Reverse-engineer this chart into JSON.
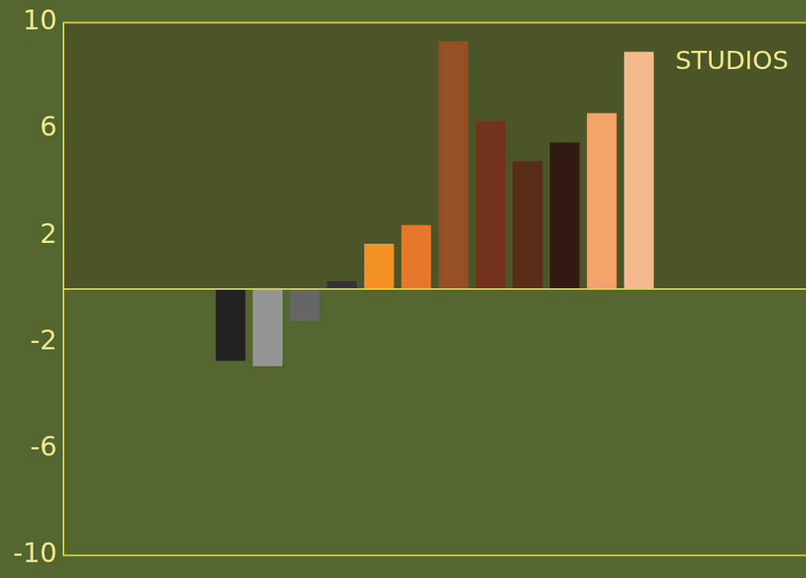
{
  "chart_data": {
    "type": "bar",
    "categories": [
      null,
      null,
      null,
      null,
      null,
      null,
      null,
      null,
      null,
      null,
      null,
      null,
      null,
      null,
      null,
      null,
      null,
      null,
      null,
      null
    ],
    "values": [
      null,
      null,
      null,
      null,
      -2.7,
      -2.9,
      -1.2,
      0.3,
      1.7,
      2.4,
      9.3,
      6.3,
      4.8,
      5.5,
      6.6,
      8.9,
      null,
      null,
      null,
      null
    ],
    "colors": [
      "#222222",
      "#222222",
      "#222222",
      "#222222",
      "#222222",
      "#959595",
      "#666666",
      "#333333",
      "#f39221",
      "#e57728",
      "#964f23",
      "#73321a",
      "#582e1a",
      "#311a12",
      "#f2a368",
      "#f4ba8c",
      "#f4ba8c",
      "#f4ba8c",
      "#f4ba8c",
      "#f4ba8c"
    ],
    "ylim": [
      -10,
      10
    ],
    "yticks": [
      -10,
      -6,
      -2,
      2,
      6,
      10
    ],
    "bands": [
      {
        "axis": "y",
        "from": 0,
        "to": 10,
        "color": "#4b5528"
      }
    ],
    "ref_lines": [
      {
        "axis": "y",
        "value": 0,
        "color": "#d8d44a"
      }
    ],
    "annotations": [
      "STUDIOS"
    ],
    "grid": false,
    "legend": false
  }
}
